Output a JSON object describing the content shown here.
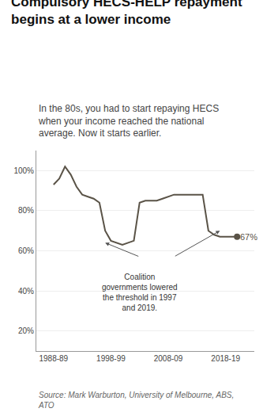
{
  "chart_data": {
    "type": "line",
    "title": "Compulsory HECS-HELP repayment\nbegins at a lower income",
    "subtitle": "In the 80s, you had to start repaying HECS\nwhen your income reached the national\naverage. Now it starts earlier.",
    "source": "Source: Mark Warburton, University of Melbourne, ABS,\nATO",
    "x": [
      1988,
      1989,
      1990,
      1991,
      1992,
      1993,
      1994,
      1995,
      1996,
      1997,
      1998,
      1999,
      2000,
      2001,
      2002,
      2003,
      2004,
      2005,
      2006,
      2007,
      2008,
      2009,
      2010,
      2011,
      2012,
      2013,
      2014,
      2015,
      2016,
      2017,
      2018,
      2019,
      2020
    ],
    "values": [
      93,
      96,
      102,
      98,
      92,
      88,
      87,
      86,
      84,
      70,
      65,
      64,
      63,
      64,
      65,
      84,
      85,
      85,
      85,
      86,
      87,
      88,
      88,
      88,
      88,
      88,
      88,
      70,
      68,
      67,
      67,
      67,
      67
    ],
    "color": "#5a5347",
    "xlim": [
      1985,
      2023
    ],
    "xticks": [
      {
        "value": 1988,
        "label": "1988-89"
      },
      {
        "value": 1998,
        "label": "1998-99"
      },
      {
        "value": 2008,
        "label": "2008-09"
      },
      {
        "value": 2018,
        "label": "2018-19"
      }
    ],
    "ylim": [
      10,
      110
    ],
    "yticks": [
      {
        "value": 20,
        "label": "20%"
      },
      {
        "value": 40,
        "label": "40%"
      },
      {
        "value": 60,
        "label": "60%"
      },
      {
        "value": 80,
        "label": "80%"
      },
      {
        "value": 100,
        "label": "100%"
      }
    ],
    "grid": true,
    "annotations": [
      {
        "text": "Coalition\ngovernments lowered\nthe threshold in 1997\nand 2019.",
        "x": 2003,
        "y": 50,
        "arrows": [
          {
            "from": [
              2003,
              57
            ],
            "to": [
              1997,
              64
            ]
          },
          {
            "from": [
              2009,
              57
            ],
            "to": [
              2017,
              70
            ]
          }
        ]
      },
      {
        "text": "67%",
        "x": 2020.3,
        "y": 67
      }
    ]
  }
}
